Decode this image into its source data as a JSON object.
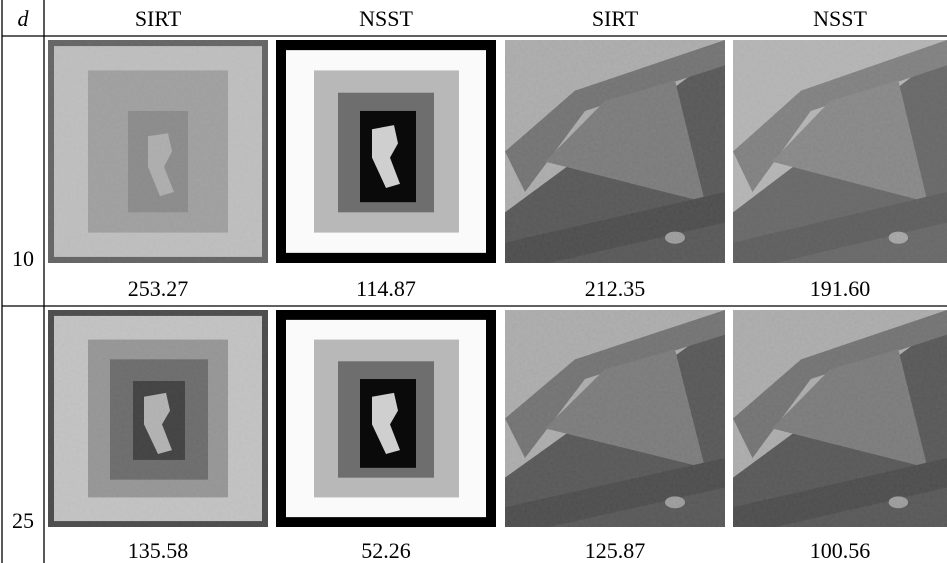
{
  "table": {
    "header": [
      "d",
      "SIRT",
      "NSST",
      "SIRT",
      "NSST"
    ],
    "rows": [
      {
        "d": "10",
        "values": [
          "253.27",
          "114.87",
          "212.35",
          "191.60"
        ]
      },
      {
        "d": "25",
        "values": [
          "135.58",
          "52.26",
          "125.87",
          "100.56"
        ]
      }
    ]
  }
}
